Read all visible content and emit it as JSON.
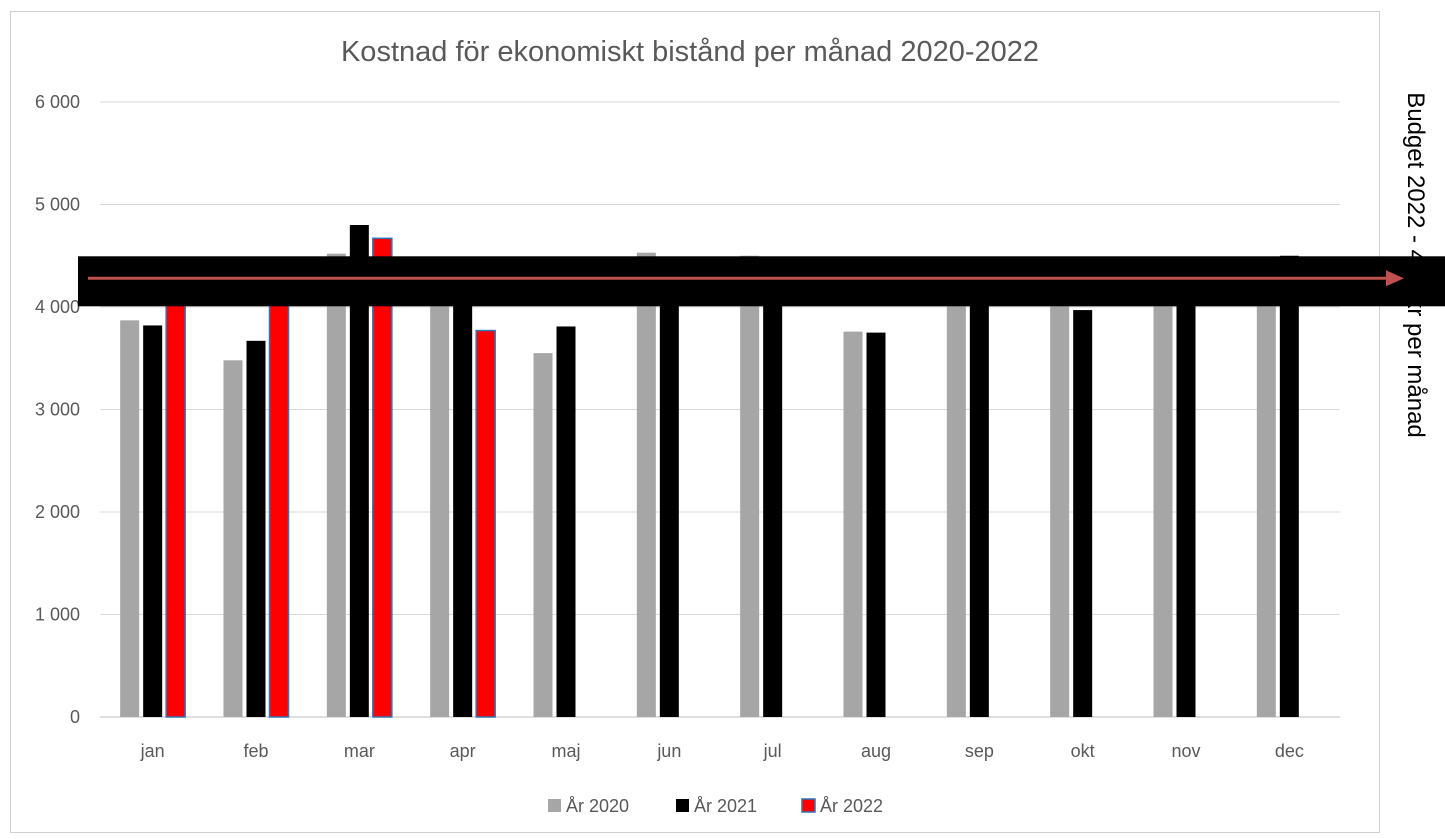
{
  "chart_data": {
    "type": "bar",
    "title": "Kostnad för ekonomiskt bistånd per månad 2020-2022",
    "xlabel": "",
    "ylabel": "",
    "ylim": [
      0,
      6000
    ],
    "yticks": [
      0,
      1000,
      2000,
      3000,
      4000,
      5000,
      6000
    ],
    "ytick_labels": [
      "0",
      "1 000",
      "2 000",
      "3 000",
      "4 000",
      "5 000",
      "6 000"
    ],
    "grid": true,
    "legend_position": "bottom",
    "categories": [
      "jan",
      "feb",
      "mar",
      "apr",
      "maj",
      "jun",
      "jul",
      "aug",
      "sep",
      "okt",
      "nov",
      "dec"
    ],
    "series": [
      {
        "name": "År 2020",
        "color": "#a6a6a6",
        "values": [
          3870,
          3480,
          4520,
          4300,
          3550,
          4530,
          4500,
          3760,
          4250,
          4200,
          4250,
          4350
        ]
      },
      {
        "name": "År 2021",
        "color": "#000000",
        "values": [
          3820,
          3670,
          4800,
          4300,
          3810,
          4300,
          4300,
          3750,
          4300,
          3970,
          4300,
          4500
        ]
      },
      {
        "name": "År 2022",
        "color": "#ff0000",
        "edge_color": "#2e75b6",
        "values": [
          4100,
          4100,
          4670,
          3770,
          null,
          null,
          null,
          null,
          null,
          null,
          null,
          null
        ]
      }
    ],
    "annotations": {
      "budget_label": "Budget 2022 - 4 2   tkr per månad",
      "budget_level": 4280,
      "budget_band_color": "#000000",
      "budget_arrow_color": "#c0504d"
    }
  }
}
